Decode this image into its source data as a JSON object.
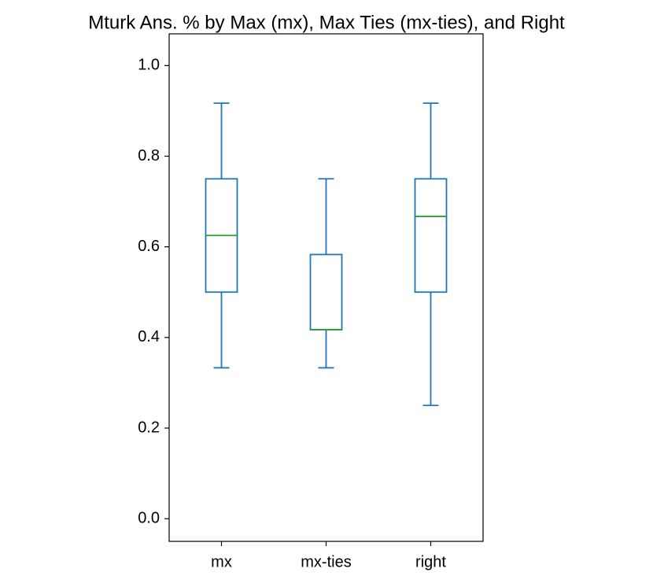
{
  "chart_data": {
    "type": "box",
    "title": "Mturk Ans. % by Max (mx), Max Ties (mx-ties), and Right",
    "categories": [
      "mx",
      "mx-ties",
      "right"
    ],
    "boxes": [
      {
        "low": 0.333,
        "q1": 0.5,
        "median": 0.625,
        "q3": 0.75,
        "high": 0.917
      },
      {
        "low": 0.333,
        "q1": 0.417,
        "median": 0.417,
        "q3": 0.583,
        "high": 0.75
      },
      {
        "low": 0.25,
        "q1": 0.5,
        "median": 0.667,
        "q3": 0.75,
        "high": 0.917
      }
    ],
    "color": "#1f77b4",
    "median_color": "#2ca02c",
    "ylim": [
      -0.05,
      1.07
    ],
    "yticks": [
      {
        "value": 0,
        "label": "0.0"
      },
      0.2,
      0.4,
      0.6,
      0.8,
      {
        "value": 1,
        "label": "1.0"
      }
    ],
    "grid": false
  }
}
